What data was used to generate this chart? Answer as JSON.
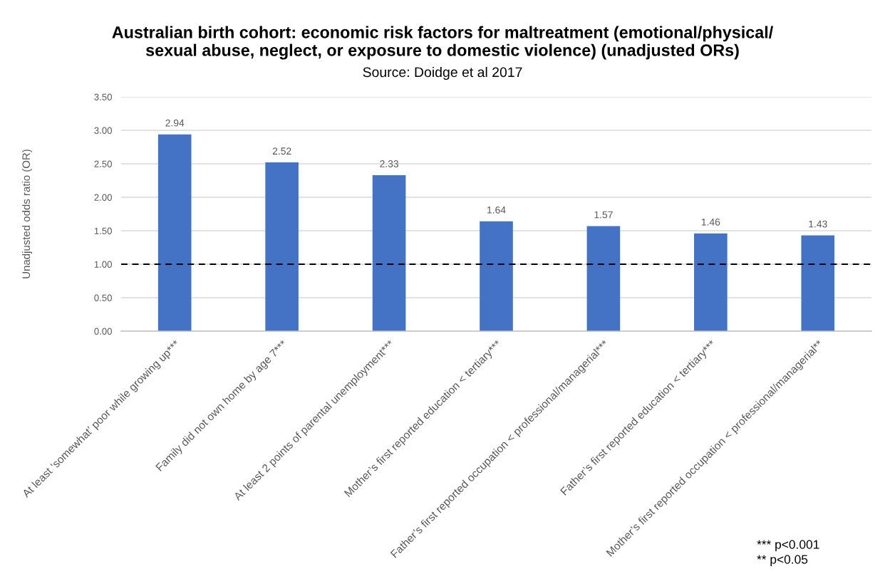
{
  "chart_data": {
    "type": "bar",
    "title": "Australian birth cohort: economic risk factors for maltreatment (emotional/physical/\nsexual abuse, neglect, or exposure to domestic violence) (unadjusted ORs)",
    "subtitle": "Source: Doidge et al 2017",
    "ylabel": "Unadjusted odds ratio (OR)",
    "categories": [
      "At least ‘somewhat’ poor while growing up***",
      "Family did not own home by age 7***",
      "At least 2 points of parental unemployment***",
      "Mother’s first reported education < tertiary***",
      "Father’s first reported occupation < professional/managerial***",
      "Father’s first reported education < tertiary***",
      "Mother’s first reported occupation < professional/managerial**"
    ],
    "values": [
      2.94,
      2.52,
      2.33,
      1.64,
      1.57,
      1.46,
      1.43
    ],
    "color": "#4472c4",
    "data_labels": true,
    "ylim": [
      0,
      3.5
    ],
    "yticks": [
      {
        "value": 0,
        "label": "0.00"
      },
      {
        "value": 0.5,
        "label": "0.50"
      },
      {
        "value": 1,
        "label": "1.00"
      },
      {
        "value": 1.5,
        "label": "1.50"
      },
      {
        "value": 2,
        "label": "2.00"
      },
      {
        "value": 2.5,
        "label": "2.50"
      },
      {
        "value": 3,
        "label": "3.00"
      },
      {
        "value": 3.5,
        "label": "3.50"
      }
    ],
    "grid": "y",
    "ref_lines": [
      {
        "axis": "y",
        "value": 1,
        "color": "#000000",
        "line_style": "dashed"
      }
    ],
    "annotations": [
      "*** p<0.001",
      "** p<0.05"
    ]
  }
}
